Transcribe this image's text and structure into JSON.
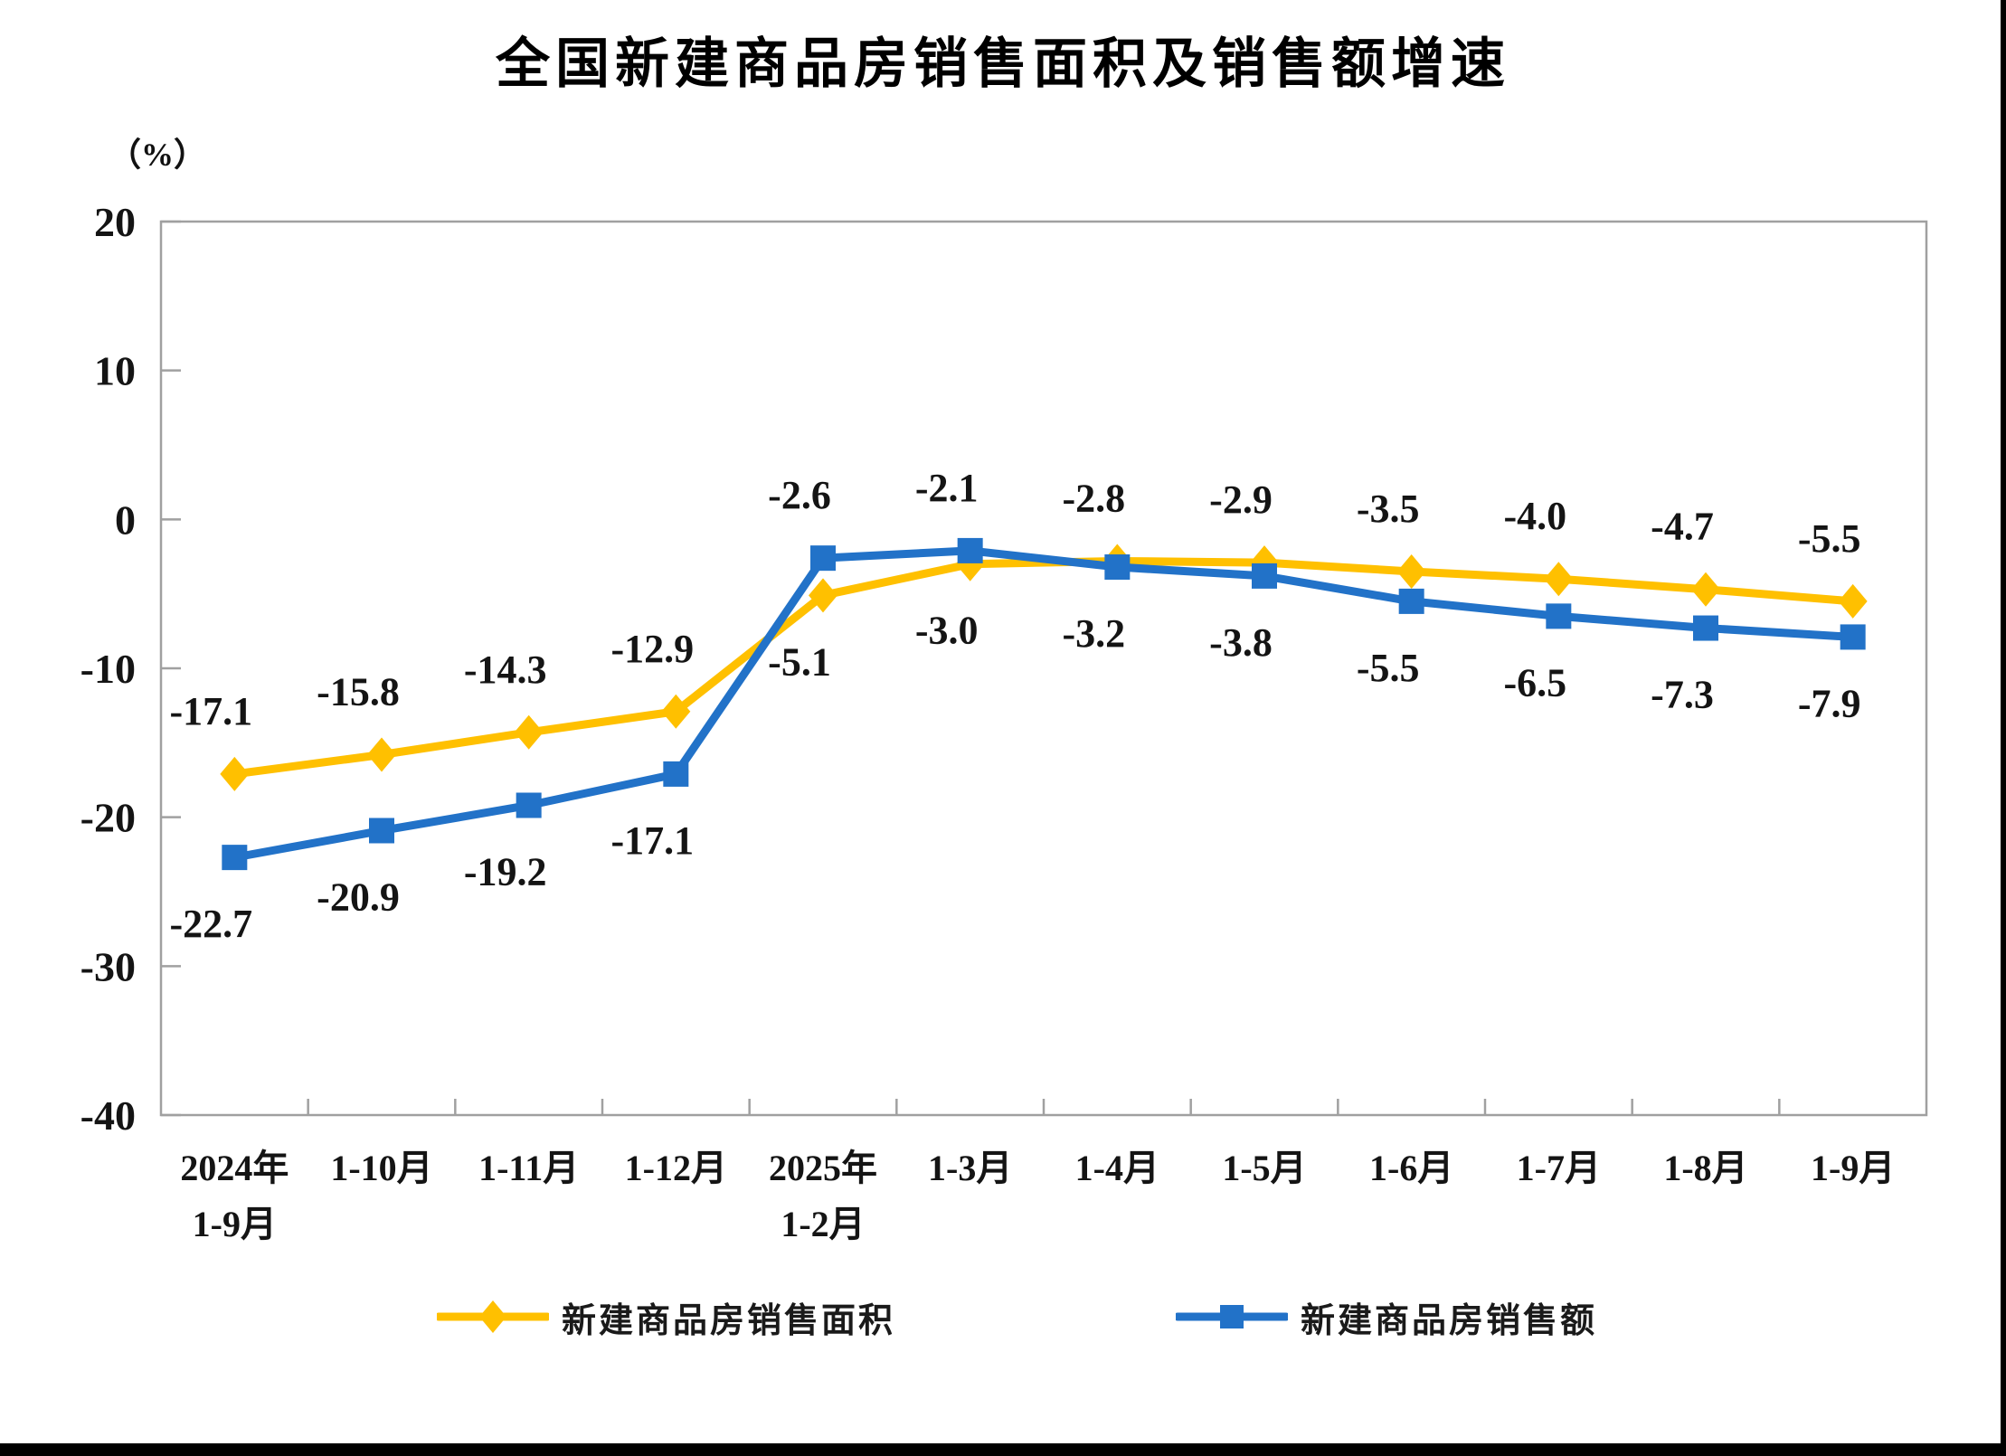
{
  "page": {
    "background": "#ffffff",
    "frame_bar_color": "#000000"
  },
  "chart_data": {
    "type": "line",
    "title": "全国新建商品房销售面积及销售额增速",
    "unit_label": "（%）",
    "categories": [
      "2024年\n1-9月",
      "1-10月",
      "1-11月",
      "1-12月",
      "2025年\n1-2月",
      "1-3月",
      "1-4月",
      "1-5月",
      "1-6月",
      "1-7月",
      "1-8月",
      "1-9月"
    ],
    "yticks": [
      20,
      10,
      0,
      -10,
      -20,
      -30,
      -40
    ],
    "ylim": [
      -40,
      20
    ],
    "grid": false,
    "legend_position": "bottom",
    "axis_color": "#a0a0a0",
    "text_color": "#141414",
    "series": [
      {
        "name": "新建商品房销售面积",
        "color": "#FFC000",
        "marker": "diamond",
        "values": [
          -17.1,
          -15.8,
          -14.3,
          -12.9,
          -5.1,
          -3.0,
          -2.8,
          -2.9,
          -3.5,
          -4.0,
          -4.7,
          -5.5
        ],
        "label_positions": [
          "above",
          "above",
          "above",
          "above",
          "below",
          "below",
          "above",
          "above",
          "above",
          "above",
          "above",
          "above"
        ]
      },
      {
        "name": "新建商品房销售额",
        "color": "#2272C8",
        "marker": "square",
        "values": [
          -22.7,
          -20.9,
          -19.2,
          -17.1,
          -2.6,
          -2.1,
          -3.2,
          -3.8,
          -5.5,
          -6.5,
          -7.3,
          -7.9
        ],
        "label_positions": [
          "below",
          "below",
          "below",
          "below",
          "above",
          "above",
          "below",
          "below",
          "below",
          "below",
          "below",
          "below"
        ]
      }
    ]
  }
}
